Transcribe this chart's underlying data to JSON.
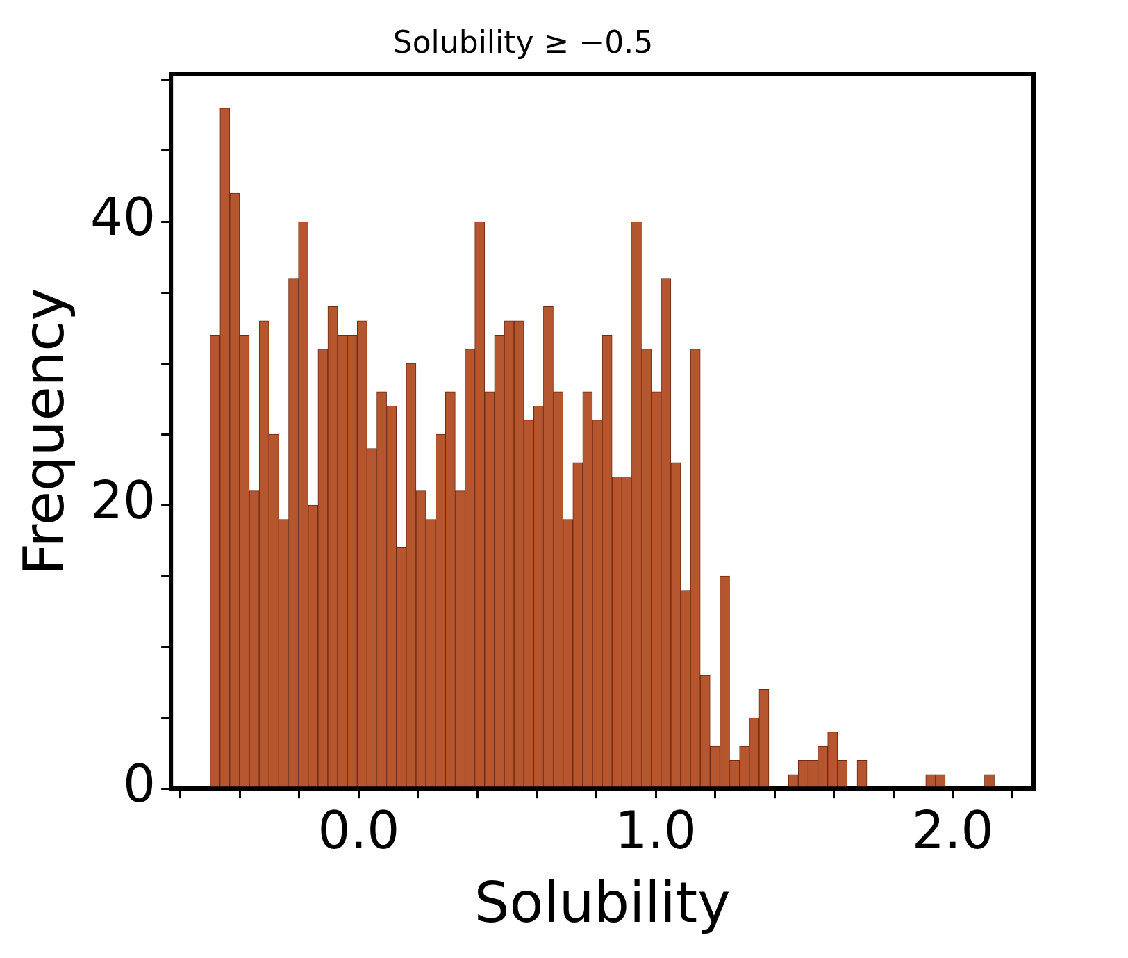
{
  "chart_data": {
    "type": "histogram",
    "title": "Solubility ≥ −0.5",
    "xlabel": "Solubility",
    "ylabel": "Frequency",
    "color": "#b5562f",
    "bins": [
      -0.5,
      -0.467,
      -0.434,
      -0.401,
      -0.368,
      -0.335,
      -0.302,
      -0.269,
      -0.236,
      -0.203,
      -0.17,
      -0.137,
      -0.104,
      -0.071,
      -0.038,
      -0.005,
      0.028,
      0.061,
      0.094,
      0.127,
      0.16,
      0.193,
      0.226,
      0.259,
      0.292,
      0.325,
      0.358,
      0.391,
      0.424,
      0.457,
      0.49,
      0.523,
      0.556,
      0.589,
      0.622,
      0.655,
      0.688,
      0.721,
      0.754,
      0.787,
      0.82,
      0.853,
      0.886,
      0.919,
      0.952,
      0.985,
      1.018,
      1.051,
      1.084,
      1.117,
      1.15,
      1.183,
      1.216,
      1.249,
      1.282,
      1.315,
      1.348,
      1.381,
      1.414,
      1.447,
      1.48,
      1.513,
      1.546,
      1.579,
      1.612,
      1.645,
      1.678,
      1.711,
      1.744,
      1.777,
      1.81,
      1.843,
      1.876,
      1.909,
      1.942,
      1.975,
      2.008,
      2.041,
      2.074,
      2.107,
      2.14
    ],
    "values": [
      32,
      48,
      42,
      32,
      21,
      33,
      25,
      19,
      36,
      40,
      20,
      31,
      34,
      32,
      32,
      33,
      24,
      28,
      27,
      17,
      30,
      21,
      19,
      25,
      28,
      21,
      31,
      40,
      28,
      32,
      33,
      33,
      26,
      27,
      34,
      28,
      19,
      23,
      28,
      26,
      32,
      22,
      22,
      40,
      31,
      28,
      36,
      23,
      14,
      31,
      8,
      3,
      15,
      2,
      3,
      5,
      7,
      0,
      0,
      1,
      2,
      2,
      3,
      4,
      2,
      0,
      2,
      0,
      0,
      0,
      0,
      0,
      0,
      1,
      1,
      0,
      0,
      0,
      0,
      1
    ],
    "xlim": [
      -0.632,
      2.272
    ],
    "xticks": [
      {
        "value": -0.6,
        "label": null
      },
      {
        "value": -0.4,
        "label": null
      },
      {
        "value": -0.2,
        "label": null
      },
      {
        "value": 0,
        "label": "0.0"
      },
      {
        "value": 0.2,
        "label": null
      },
      {
        "value": 0.4,
        "label": null
      },
      {
        "value": 0.6,
        "label": null
      },
      {
        "value": 0.8,
        "label": null
      },
      {
        "value": 1,
        "label": "1.0"
      },
      {
        "value": 1.2,
        "label": null
      },
      {
        "value": 1.4,
        "label": null
      },
      {
        "value": 1.6,
        "label": null
      },
      {
        "value": 1.8,
        "label": null
      },
      {
        "value": 2,
        "label": "2.0"
      },
      {
        "value": 2.2,
        "label": null
      }
    ],
    "ylim": [
      0,
      50.4
    ],
    "yticks": [
      0,
      {
        "value": 5,
        "label": null
      },
      {
        "value": 10,
        "label": null
      },
      {
        "value": 15,
        "label": null
      },
      20,
      {
        "value": 25,
        "label": null
      },
      {
        "value": 30,
        "label": null
      },
      {
        "value": 35,
        "label": null
      },
      40,
      {
        "value": 45,
        "label": null
      },
      {
        "value": 50,
        "label": null
      }
    ],
    "grid": false,
    "legend": false
  }
}
